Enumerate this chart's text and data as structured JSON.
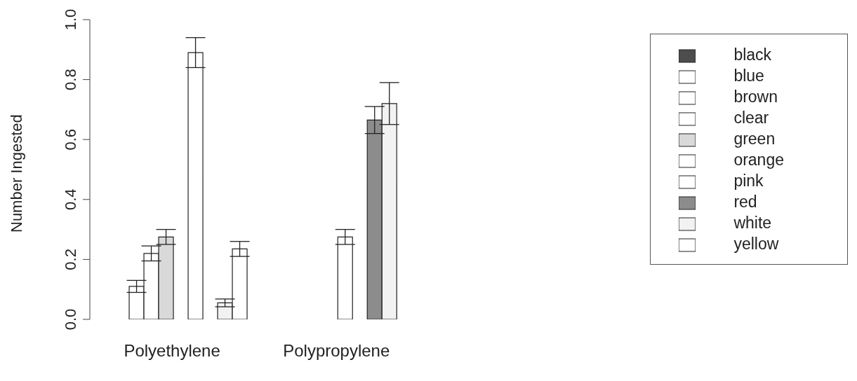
{
  "chart_data": {
    "type": "bar",
    "ylabel": "Number Ingested",
    "categories": [
      "Polyethylene",
      "Polypropylene"
    ],
    "ylim": [
      0,
      1
    ],
    "yticks": [
      {
        "value": 0,
        "label": "0.0"
      },
      {
        "value": 0.2,
        "label": "0.2"
      },
      {
        "value": 0.4,
        "label": "0.4"
      },
      {
        "value": 0.6,
        "label": "0.6"
      },
      {
        "value": 0.8,
        "label": "0.8"
      },
      {
        "value": 1,
        "label": "1.0"
      }
    ],
    "legend": "right",
    "series": [
      {
        "name": "black",
        "color": "#4d4d4d",
        "values": [
          0,
          0
        ],
        "errors": [
          null,
          null
        ]
      },
      {
        "name": "blue",
        "color": "#ffffff",
        "values": [
          0,
          0
        ],
        "errors": [
          null,
          null
        ]
      },
      {
        "name": "brown",
        "color": "#ffffff",
        "values": [
          0.11,
          0
        ],
        "errors": [
          0.02,
          null
        ]
      },
      {
        "name": "clear",
        "color": "#ffffff",
        "values": [
          0.22,
          0
        ],
        "errors": [
          0.025,
          null
        ]
      },
      {
        "name": "green",
        "color": "#d9d9d9",
        "values": [
          0.275,
          0
        ],
        "errors": [
          0.025,
          null
        ]
      },
      {
        "name": "orange",
        "color": "#ffffff",
        "values": [
          0,
          0.275
        ],
        "errors": [
          null,
          0.025
        ]
      },
      {
        "name": "pink",
        "color": "#ffffff",
        "values": [
          0.89,
          0
        ],
        "errors": [
          0.05,
          null
        ]
      },
      {
        "name": "red",
        "color": "#8c8c8c",
        "values": [
          0,
          0.665
        ],
        "errors": [
          null,
          0.045
        ]
      },
      {
        "name": "white",
        "color": "#f2f2f2",
        "values": [
          0.055,
          0.72
        ],
        "errors": [
          0.013,
          0.07
        ]
      },
      {
        "name": "yellow",
        "color": "#ffffff",
        "values": [
          0.235,
          0
        ],
        "errors": [
          0.025,
          null
        ]
      }
    ]
  }
}
